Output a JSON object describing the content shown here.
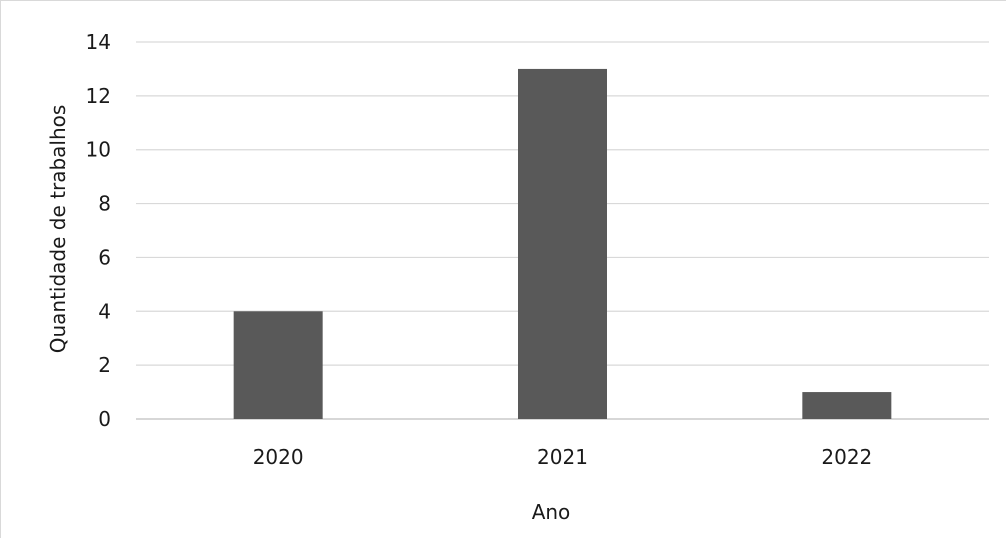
{
  "chart_data": {
    "type": "bar",
    "title": "",
    "xlabel": "Ano",
    "ylabel": "Quantidade de trabalhos",
    "categories": [
      "2020",
      "2021",
      "2022"
    ],
    "values": [
      4,
      13,
      1
    ],
    "ylim": [
      0,
      14
    ],
    "yticks": [
      0,
      2,
      4,
      6,
      8,
      10,
      12,
      14
    ],
    "grid": true,
    "legend": "none",
    "bar_color": "#595959",
    "grid_color": "#d9d9d9"
  }
}
